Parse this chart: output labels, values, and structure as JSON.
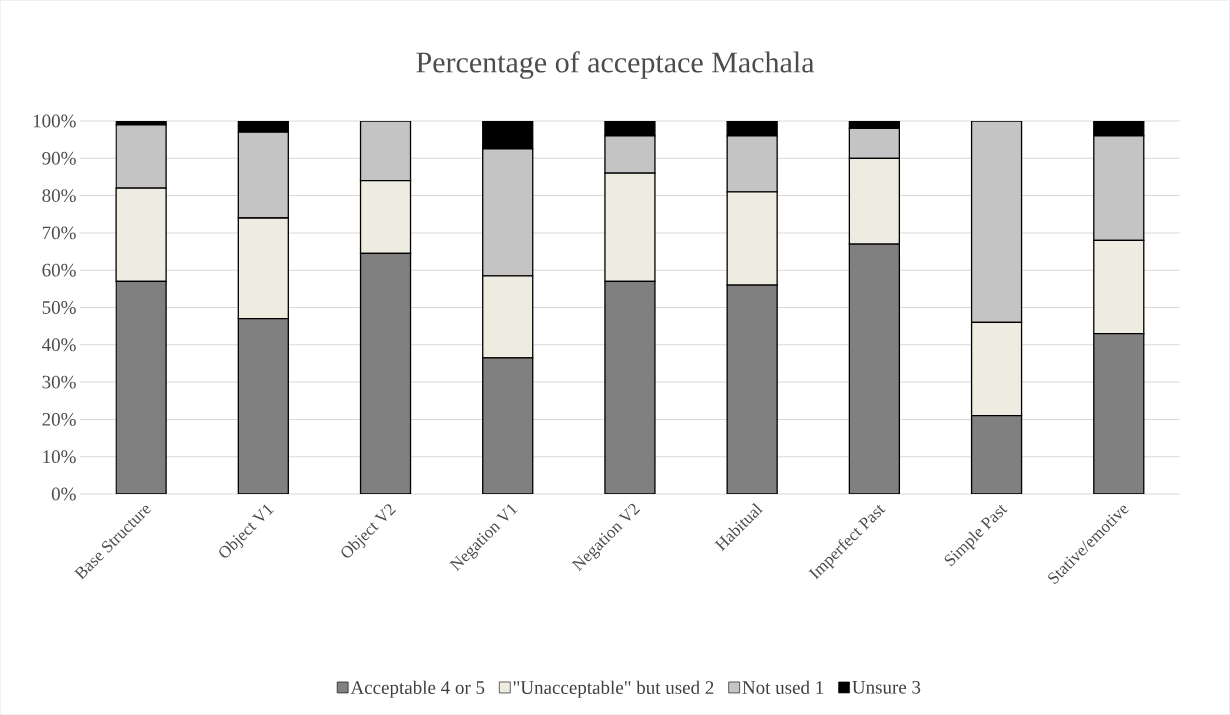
{
  "chart_data": {
    "type": "bar",
    "stacked": true,
    "title": "Percentage of acceptace Machala",
    "categories": [
      "Base Structure",
      "Object V1",
      "Object V2",
      "Negation V1",
      "Negation V2",
      "Habitual",
      "Imperfect Past",
      "Simple Past",
      "Stative/emotive"
    ],
    "series": [
      {
        "name": "Acceptable 4 or 5",
        "color": "#808080",
        "values": [
          57,
          47,
          64.5,
          36.5,
          57,
          56,
          67,
          21,
          43
        ]
      },
      {
        "name": "\"Unacceptable\" but used 2",
        "color": "#eeebe0",
        "values": [
          25,
          27,
          19.5,
          22,
          29,
          25,
          23,
          25,
          25
        ]
      },
      {
        "name": "Not used 1",
        "color": "#c4c4c4",
        "values": [
          17,
          23,
          16,
          34,
          10,
          15,
          8,
          54,
          28
        ]
      },
      {
        "name": "Unsure 3",
        "color": "#000000",
        "values": [
          1,
          3,
          0,
          7.5,
          4,
          4,
          2,
          0,
          4
        ]
      }
    ],
    "ylim": [
      0,
      100
    ],
    "yticks": [
      {
        "value": 0,
        "label": "0%"
      },
      {
        "value": 10,
        "label": "10%"
      },
      {
        "value": 20,
        "label": "20%"
      },
      {
        "value": 30,
        "label": "30%"
      },
      {
        "value": 40,
        "label": "40%"
      },
      {
        "value": 50,
        "label": "50%"
      },
      {
        "value": 60,
        "label": "60%"
      },
      {
        "value": 70,
        "label": "70%"
      },
      {
        "value": 80,
        "label": "80%"
      },
      {
        "value": 90,
        "label": "90%"
      },
      {
        "value": 100,
        "label": "100%"
      }
    ],
    "grid": "y",
    "legend": "bottom"
  }
}
